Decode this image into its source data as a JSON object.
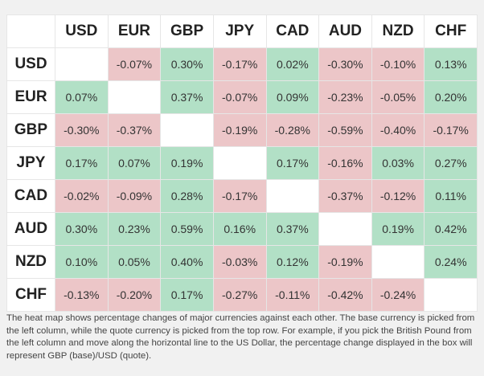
{
  "table": {
    "columns": [
      "USD",
      "EUR",
      "GBP",
      "JPY",
      "CAD",
      "AUD",
      "NZD",
      "CHF"
    ],
    "rows": [
      {
        "label": "USD",
        "cells": [
          null,
          "-0.07%",
          "0.30%",
          "-0.17%",
          "0.02%",
          "-0.30%",
          "-0.10%",
          "0.13%"
        ]
      },
      {
        "label": "EUR",
        "cells": [
          "0.07%",
          null,
          "0.37%",
          "-0.07%",
          "0.09%",
          "-0.23%",
          "-0.05%",
          "0.20%"
        ]
      },
      {
        "label": "GBP",
        "cells": [
          "-0.30%",
          "-0.37%",
          null,
          "-0.19%",
          "-0.28%",
          "-0.59%",
          "-0.40%",
          "-0.17%"
        ]
      },
      {
        "label": "JPY",
        "cells": [
          "0.17%",
          "0.07%",
          "0.19%",
          null,
          "0.17%",
          "-0.16%",
          "0.03%",
          "0.27%"
        ]
      },
      {
        "label": "CAD",
        "cells": [
          "-0.02%",
          "-0.09%",
          "0.28%",
          "-0.17%",
          null,
          "-0.37%",
          "-0.12%",
          "0.11%"
        ]
      },
      {
        "label": "AUD",
        "cells": [
          "0.30%",
          "0.23%",
          "0.59%",
          "0.16%",
          "0.37%",
          null,
          "0.19%",
          "0.42%"
        ]
      },
      {
        "label": "NZD",
        "cells": [
          "0.10%",
          "0.05%",
          "0.40%",
          "-0.03%",
          "0.12%",
          "-0.19%",
          null,
          "0.24%"
        ]
      },
      {
        "label": "CHF",
        "cells": [
          "-0.13%",
          "-0.20%",
          "0.17%",
          "-0.27%",
          "-0.11%",
          "-0.42%",
          "-0.24%",
          null
        ]
      }
    ]
  },
  "footnote": "The heat map shows percentage changes of major currencies against each other. The base currency is picked from the left column, while the quote currency is picked from the top row. For example, if you pick the British Pound from the left column and move along the horizontal line to the US Dollar, the percentage change displayed in the box will represent GBP (base)/USD (quote)."
}
